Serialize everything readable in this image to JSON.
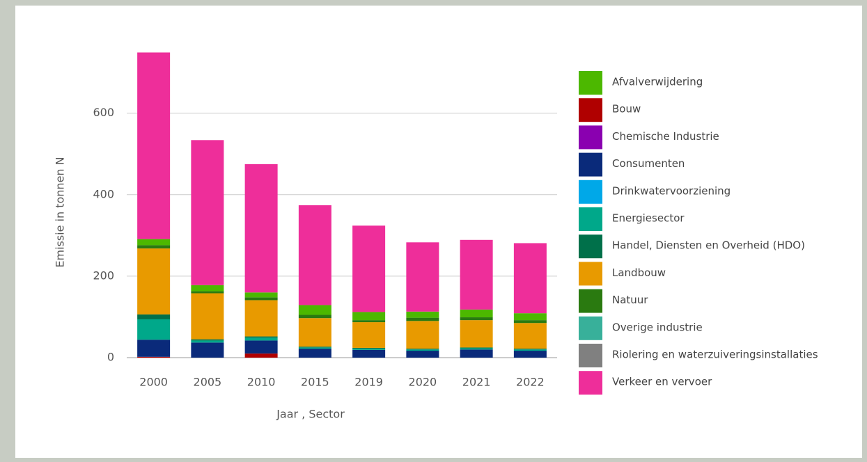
{
  "chart_data": {
    "type": "stacked_bar",
    "x_label": "Jaar , Sector",
    "y_label": "Emissie in tonnen N",
    "categories": [
      "2000",
      "2005",
      "2010",
      "2015",
      "2019",
      "2020",
      "2021",
      "2022"
    ],
    "ylim": [
      0,
      760
    ],
    "yticks": [
      0,
      200,
      400,
      600
    ],
    "grid": true,
    "legend": "right",
    "series": [
      {
        "name": "Afvalverwijdering",
        "color": "#4cb800",
        "values": [
          15,
          15,
          12,
          24,
          20,
          15,
          19,
          17
        ]
      },
      {
        "name": "Bouw",
        "color": "#b00000",
        "values": [
          2,
          0,
          10,
          0,
          0,
          0,
          0,
          0
        ]
      },
      {
        "name": "Chemische Industrie",
        "color": "#8a00b0",
        "values": [
          0,
          0,
          0,
          0,
          0,
          0,
          0,
          0
        ]
      },
      {
        "name": "Consumenten",
        "color": "#0a2a7a",
        "values": [
          42,
          37,
          32,
          22,
          19,
          17,
          20,
          17
        ]
      },
      {
        "name": "Drinkwatervoorziening",
        "color": "#00a8e8",
        "values": [
          0,
          0,
          0,
          0,
          0,
          0,
          0,
          0
        ]
      },
      {
        "name": "Energiesector",
        "color": "#00a88a",
        "values": [
          50,
          5,
          7,
          3,
          3,
          3,
          3,
          3
        ]
      },
      {
        "name": "Handel, Diensten en Overheid (HDO)",
        "color": "#00704a",
        "values": [
          12,
          3,
          3,
          2,
          2,
          2,
          2,
          2
        ]
      },
      {
        "name": "Landbouw",
        "color": "#e89a00",
        "values": [
          162,
          113,
          89,
          70,
          63,
          68,
          67,
          63
        ]
      },
      {
        "name": "Natuur",
        "color": "#2a7a10",
        "values": [
          8,
          5,
          7,
          8,
          5,
          8,
          7,
          7
        ]
      },
      {
        "name": "Overige industrie",
        "color": "#38b09a",
        "values": [
          0,
          0,
          0,
          0,
          0,
          0,
          0,
          0
        ]
      },
      {
        "name": "Riolering en waterzuiveringsinstallaties",
        "color": "#808080",
        "values": [
          0,
          0,
          0,
          0,
          0,
          0,
          0,
          0
        ]
      },
      {
        "name": "Verkeer en vervoer",
        "color": "#ee2e9a",
        "values": [
          458,
          356,
          315,
          245,
          212,
          170,
          171,
          172
        ]
      }
    ]
  }
}
